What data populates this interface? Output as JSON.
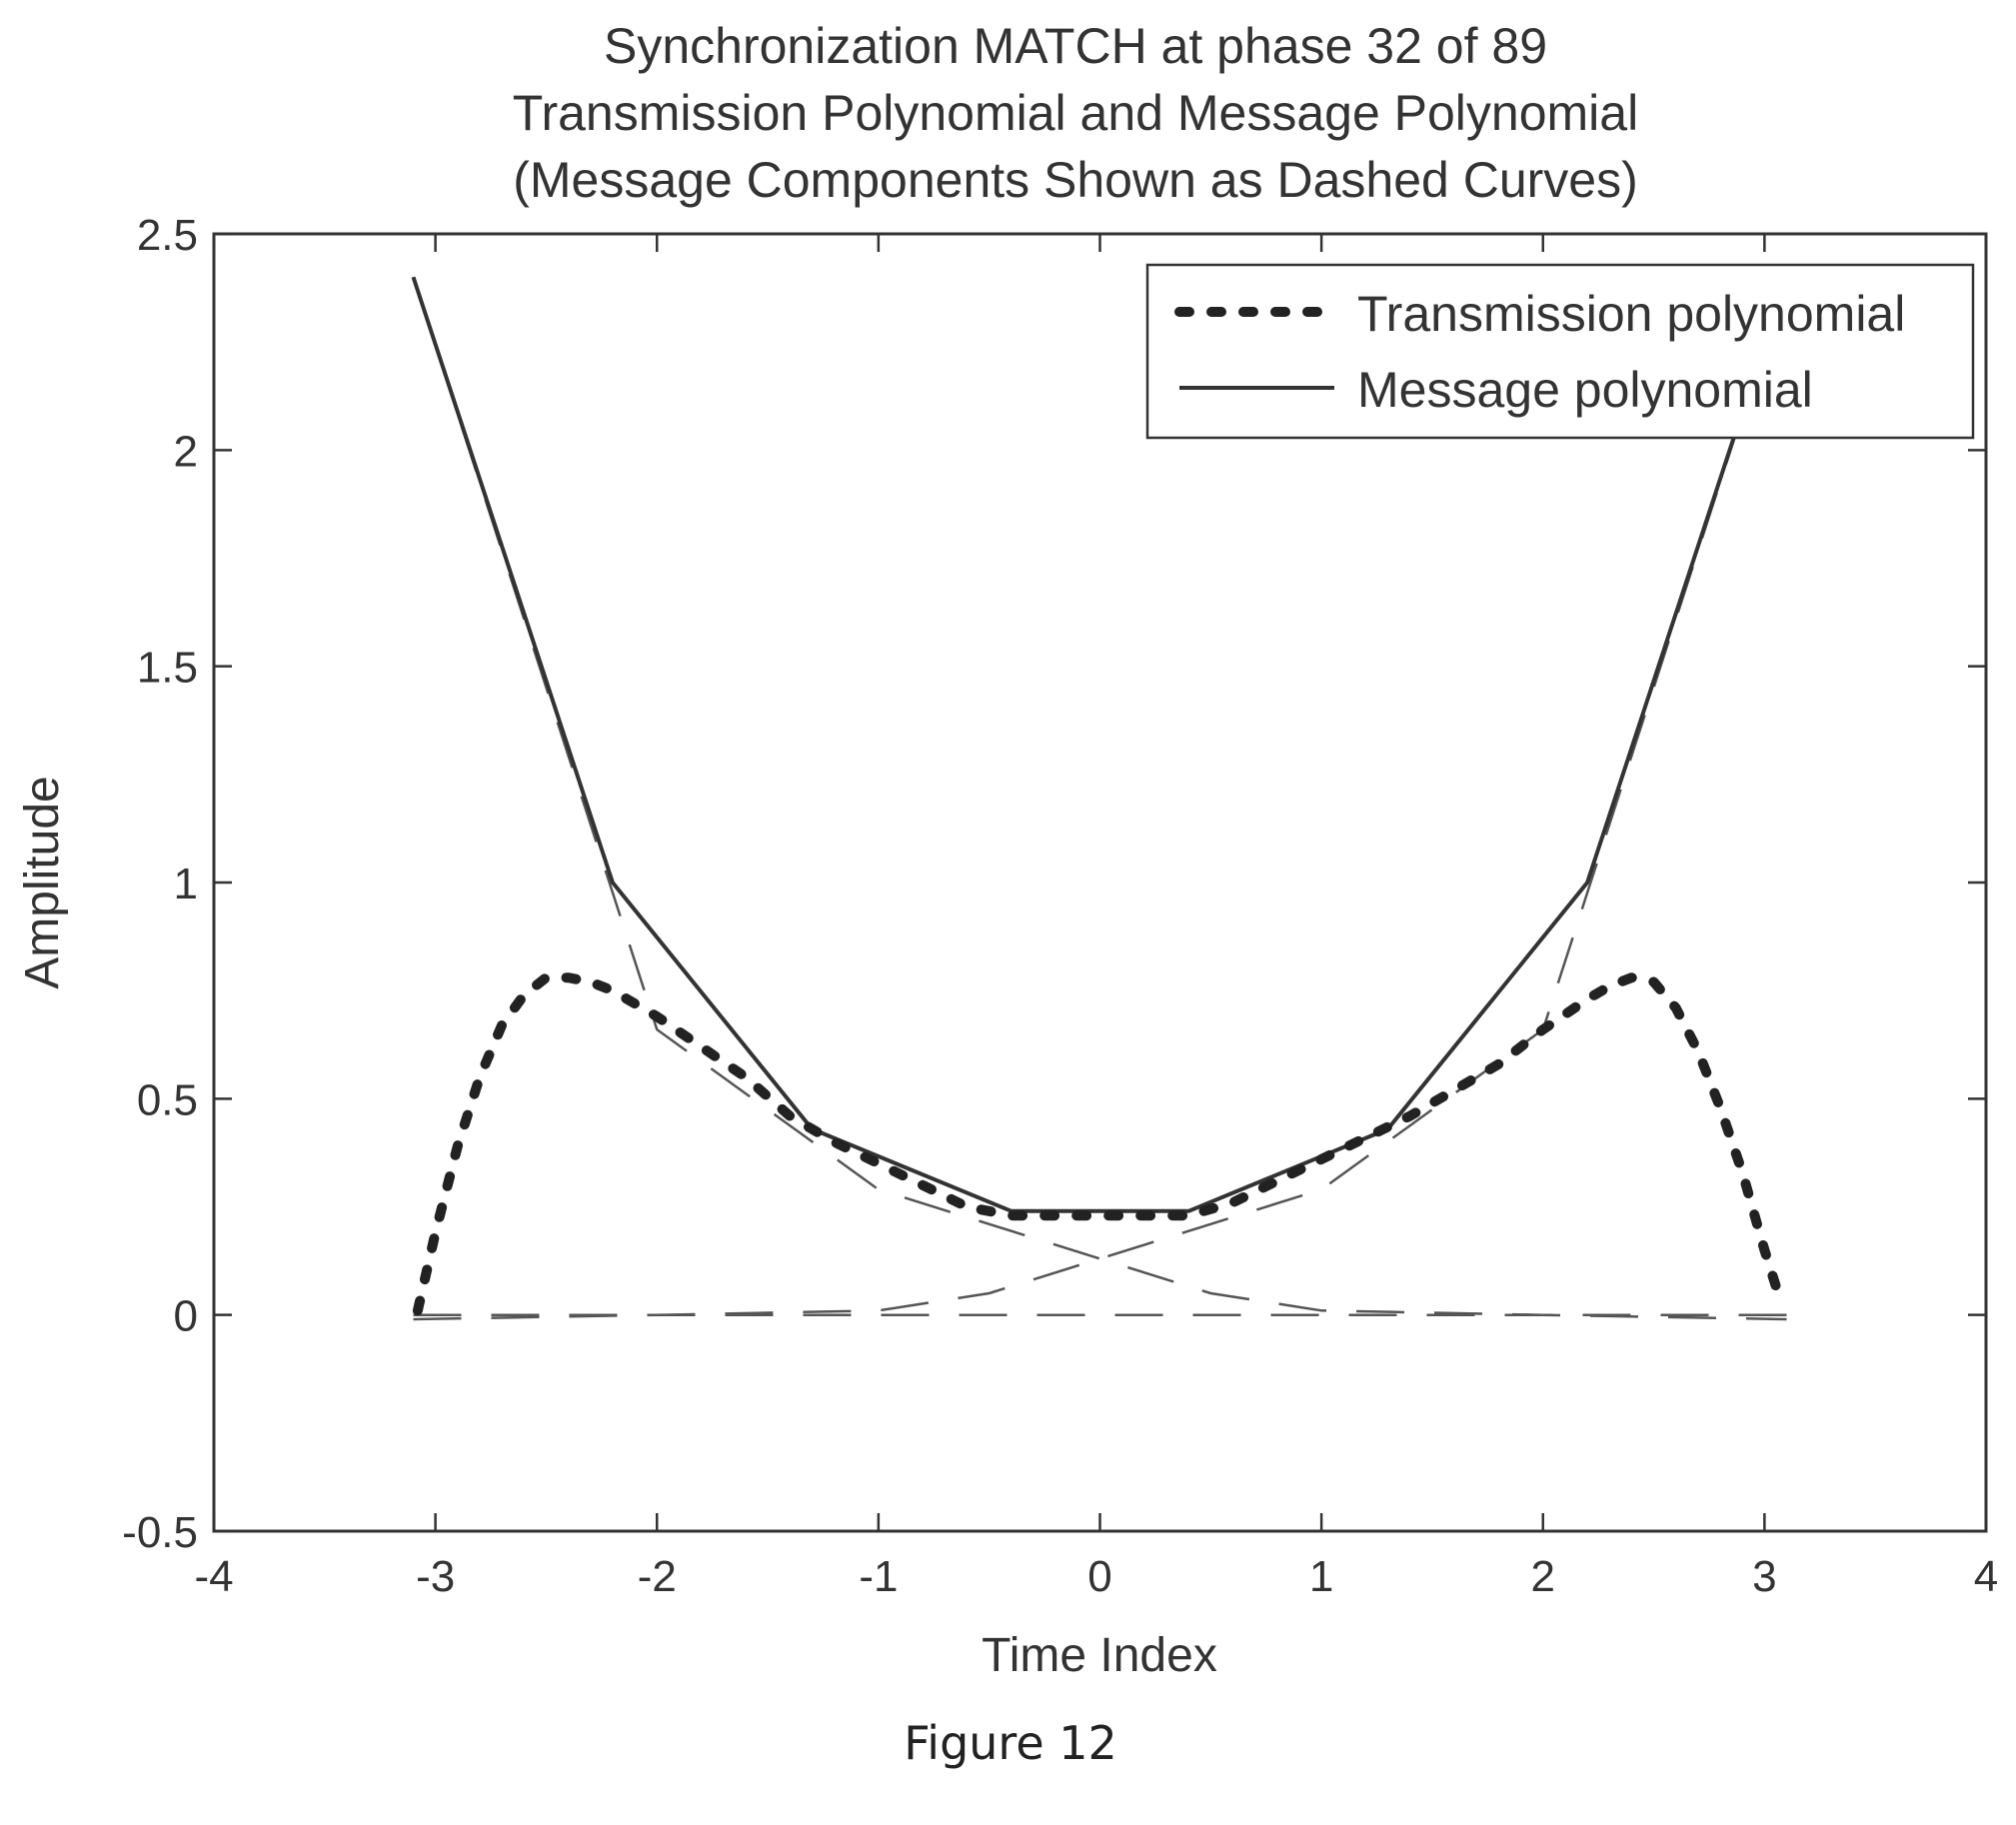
{
  "chart_data": {
    "type": "line",
    "title": [
      "Synchronization MATCH at phase 32 of 89",
      "Transmission Polynomial and Message Polynomial",
      "(Message Components Shown as Dashed Curves)"
    ],
    "xlabel": "Time Index",
    "ylabel": "Amplitude",
    "xlim": [
      -4,
      4
    ],
    "ylim": [
      -0.5,
      2.5
    ],
    "xticks": [
      -4,
      -3,
      -2,
      -1,
      0,
      1,
      2,
      3,
      4
    ],
    "xtick_labels": [
      "-4",
      "-3",
      "-2",
      "-1",
      "0",
      "1",
      "2",
      "3",
      "4"
    ],
    "yticks": [
      -0.5,
      0,
      0.5,
      1,
      1.5,
      2,
      2.5
    ],
    "ytick_labels": [
      "-0.5",
      "0",
      "0.5",
      "1",
      "1.5",
      "2",
      "2.5"
    ],
    "grid": false,
    "legend_position": "top-right",
    "series": [
      {
        "name": "Transmission polynomial",
        "style": "dotted",
        "color": "#222222",
        "x": [
          -3.08,
          -3.0,
          -2.9,
          -2.8,
          -2.7,
          -2.6,
          -2.5,
          -2.4,
          -2.3,
          -2.2,
          -2.0,
          -1.8,
          -1.6,
          -1.4,
          -1.2,
          -1.0,
          -0.8,
          -0.6,
          -0.4,
          -0.2,
          0.0,
          0.2,
          0.4,
          0.6,
          0.8,
          1.0,
          1.2,
          1.4,
          1.6,
          1.8,
          2.0,
          2.2,
          2.3,
          2.4,
          2.5,
          2.6,
          2.7,
          2.8,
          2.9,
          3.0,
          3.08
        ],
        "y": [
          0.01,
          0.19,
          0.39,
          0.55,
          0.67,
          0.74,
          0.78,
          0.78,
          0.77,
          0.75,
          0.69,
          0.62,
          0.55,
          0.46,
          0.4,
          0.35,
          0.3,
          0.25,
          0.23,
          0.23,
          0.23,
          0.23,
          0.23,
          0.26,
          0.31,
          0.36,
          0.41,
          0.46,
          0.52,
          0.58,
          0.66,
          0.73,
          0.76,
          0.78,
          0.77,
          0.71,
          0.61,
          0.48,
          0.33,
          0.15,
          0.02
        ]
      },
      {
        "name": "Message polynomial",
        "style": "solid",
        "color": "#333333",
        "x": [
          -3.1,
          -2.2,
          -1.3,
          -0.4,
          0.0,
          0.4,
          1.3,
          2.2,
          3.1
        ],
        "y": [
          2.4,
          1.0,
          0.43,
          0.24,
          0.24,
          0.24,
          0.43,
          1.0,
          2.4
        ]
      },
      {
        "style": "dashed",
        "color": "#555555",
        "x": [
          -3.1,
          -2.0,
          -1.0,
          -0.5,
          0.0,
          0.5,
          1.0,
          2.0,
          3.1
        ],
        "y": [
          -0.01,
          0.0,
          0.01,
          0.05,
          0.13,
          0.21,
          0.29,
          0.66,
          2.4
        ]
      },
      {
        "style": "dashed",
        "color": "#555555",
        "x": [
          -3.1,
          -2.0,
          -1.0,
          -0.5,
          0.0,
          0.5,
          1.0,
          2.0,
          3.1
        ],
        "y": [
          2.4,
          0.66,
          0.29,
          0.21,
          0.13,
          0.05,
          0.01,
          0.0,
          -0.01
        ]
      },
      {
        "style": "dashed",
        "color": "#555555",
        "x": [
          -3.1,
          3.1
        ],
        "y": [
          0.0,
          0.0
        ]
      }
    ]
  },
  "caption": "Figure 12"
}
